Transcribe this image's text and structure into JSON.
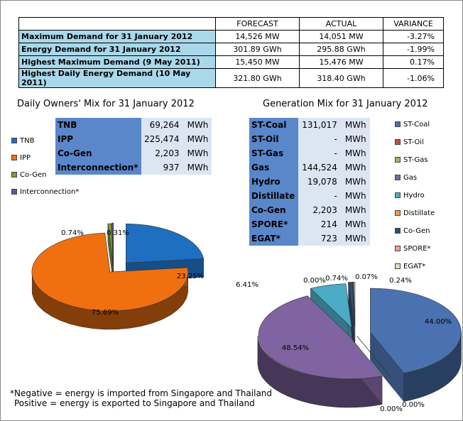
{
  "summary": {
    "headers": [
      "",
      "FORECAST",
      "ACTUAL",
      "VARIANCE"
    ],
    "rows": [
      {
        "label": "Maximum Demand for 31 January 2012",
        "forecast": "14,526 MW",
        "actual": "14,051 MW",
        "variance": "-3.27%"
      },
      {
        "label": "Energy Demand for 31 January 2012",
        "forecast": "301.89 GWh",
        "actual": "295.88 GWh",
        "variance": "-1.99%"
      },
      {
        "label": "Highest Maximum Demand (9 May 2011)",
        "forecast": "15,450 MW",
        "actual": "15,476 MW",
        "variance": "0.17%"
      },
      {
        "label": "Highest Daily Energy Demand (10 May 2011)",
        "forecast": "321.80 GWh",
        "actual": "318.40 GWh",
        "variance": "-1.06%"
      }
    ]
  },
  "footnote": {
    "line1": "*Negative = energy is imported from Singapore and Thailand",
    "line2": "Positive = energy is exported to Singapore and Thailand"
  },
  "chart_data": [
    {
      "type": "pie",
      "title": "Daily Owners' Mix for 31 January 2012",
      "table": [
        {
          "label": "TNB",
          "value": "69,264",
          "unit": "MWh"
        },
        {
          "label": "IPP",
          "value": "225,474",
          "unit": "MWh"
        },
        {
          "label": "Co-Gen",
          "value": "2,203",
          "unit": "MWh"
        },
        {
          "label": "Interconnection*",
          "value": "937",
          "unit": "MWh"
        }
      ],
      "legend": [
        "TNB",
        "IPP",
        "Co-Gen",
        "Interconnection*"
      ],
      "colors": [
        "#1f6fc0",
        "#f07010",
        "#7a9a3a",
        "#7050a0"
      ],
      "percent_labels": [
        "23.25%",
        "75.69%",
        "0.74%",
        "0.31%"
      ],
      "values": [
        23.25,
        75.69,
        0.74,
        0.31
      ]
    },
    {
      "type": "pie",
      "title": "Generation Mix for 31 January 2012",
      "table": [
        {
          "label": "ST-Coal",
          "value": "131,017",
          "unit": "MWh"
        },
        {
          "label": "ST-Oil",
          "value": "-",
          "unit": "MWh"
        },
        {
          "label": "ST-Gas",
          "value": "-",
          "unit": "MWh"
        },
        {
          "label": "Gas",
          "value": "144,524",
          "unit": "MWh"
        },
        {
          "label": "Hydro",
          "value": "19,078",
          "unit": "MWh"
        },
        {
          "label": "Distillate",
          "value": "-",
          "unit": "MWh"
        },
        {
          "label": "Co-Gen",
          "value": "2,203",
          "unit": "MWh"
        },
        {
          "label": "SPORE*",
          "value": "214",
          "unit": "MWh"
        },
        {
          "label": "EGAT*",
          "value": "723",
          "unit": "MWh"
        }
      ],
      "legend": [
        "ST-Coal",
        "ST-Oil",
        "ST-Gas",
        "Gas",
        "Hydro",
        "Distillate",
        "Co-Gen",
        "SPORE*",
        "EGAT*"
      ],
      "colors": [
        "#4a72b0",
        "#c0504d",
        "#9bbb59",
        "#8064a2",
        "#4bacc6",
        "#f79646",
        "#2c4d75",
        "#f2a08a",
        "#d7e4bd"
      ],
      "percent_labels": [
        "44.00%",
        "0.00%",
        "0.00%",
        "48.54%",
        "6.41%",
        "0.00%",
        "0.74%",
        "0.07%",
        "0.24%"
      ],
      "values": [
        44.0,
        0.0,
        0.0,
        48.54,
        6.41,
        0.0,
        0.74,
        0.07,
        0.24
      ]
    }
  ]
}
